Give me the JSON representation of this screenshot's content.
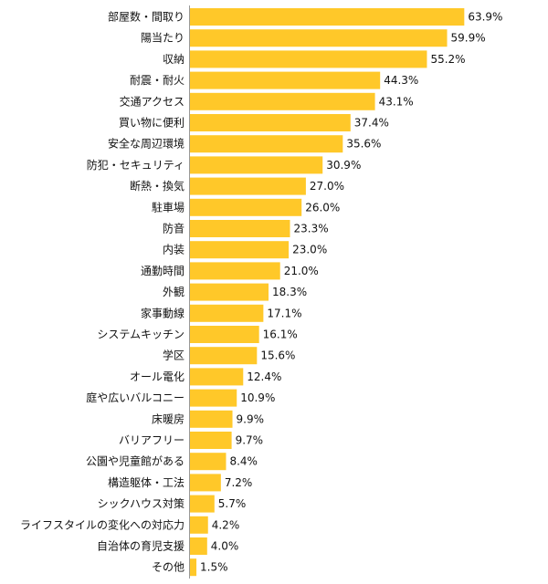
{
  "chart_data": {
    "type": "bar",
    "orientation": "horizontal",
    "categories": [
      "部屋数・間取り",
      "陽当たり",
      "収納",
      "耐震・耐火",
      "交通アクセス",
      "買い物に便利",
      "安全な周辺環境",
      "防犯・セキュリティ",
      "断熱・換気",
      "駐車場",
      "防音",
      "内装",
      "通勤時間",
      "外観",
      "家事動線",
      "システムキッチン",
      "学区",
      "オール電化",
      "庭や広いバルコニー",
      "床暖房",
      "バリアフリー",
      "公園や児童館がある",
      "構造躯体・工法",
      "シックハウス対策",
      "ライフスタイルの変化への対応力",
      "自治体の育児支援",
      "その他"
    ],
    "values": [
      63.9,
      59.9,
      55.2,
      44.3,
      43.1,
      37.4,
      35.6,
      30.9,
      27.0,
      26.0,
      23.3,
      23.0,
      21.0,
      18.3,
      17.1,
      16.1,
      15.6,
      12.4,
      10.9,
      9.9,
      9.7,
      8.4,
      7.2,
      5.7,
      4.2,
      4.0,
      1.5
    ],
    "value_labels": [
      "63.9%",
      "59.9%",
      "55.2%",
      "44.3%",
      "43.1%",
      "37.4%",
      "35.6%",
      "30.9%",
      "27.0%",
      "26.0%",
      "23.3%",
      "23.0%",
      "21.0%",
      "18.3%",
      "17.1%",
      "16.1%",
      "15.6%",
      "12.4%",
      "10.9%",
      "9.9%",
      "9.7%",
      "8.4%",
      "7.2%",
      "5.7%",
      "4.2%",
      "4.0%",
      "1.5%"
    ],
    "unit": "%",
    "xlim": [
      0,
      70
    ],
    "grid": false,
    "legend": "none",
    "bar_color": "#FFC829"
  }
}
